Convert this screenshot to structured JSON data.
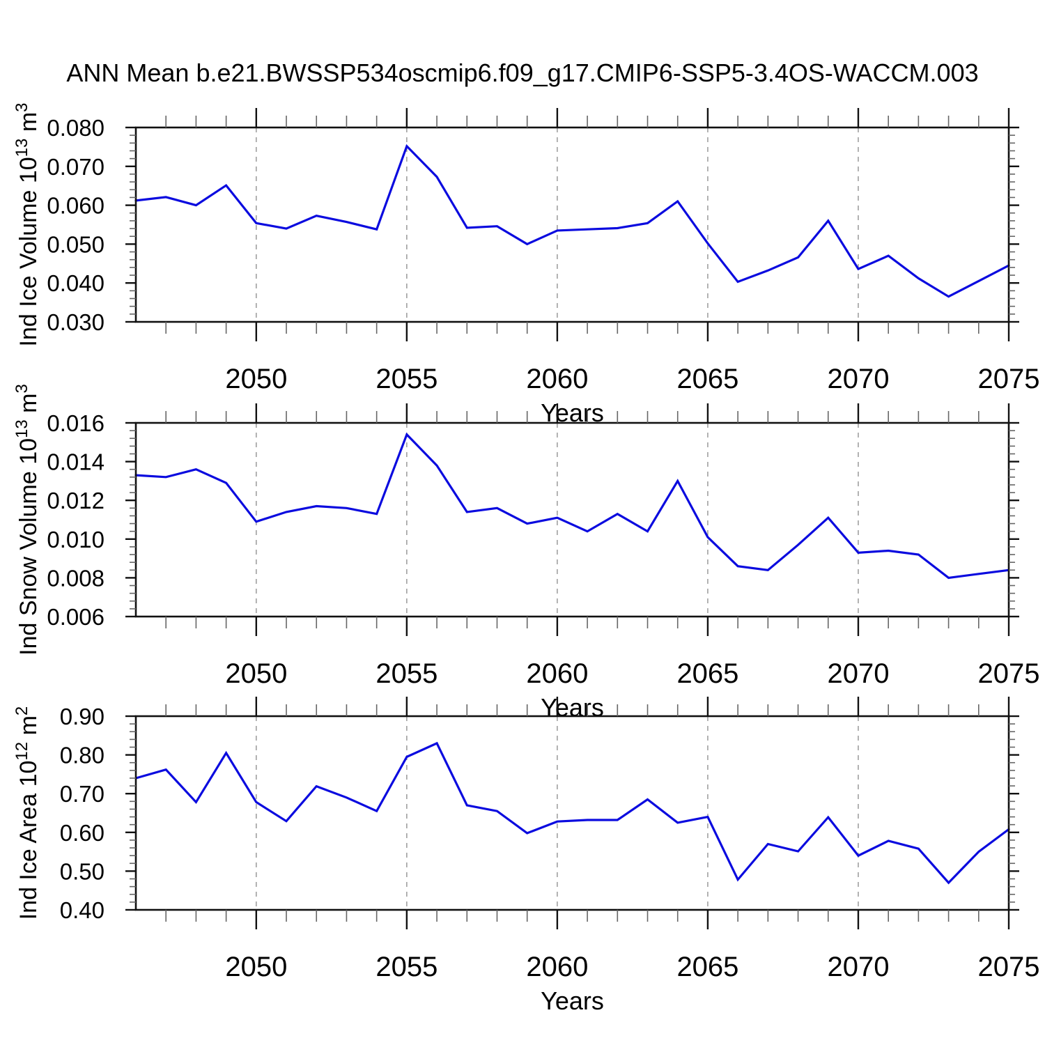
{
  "title": "ANN Mean b.e21.BWSSP534oscmip6.f09_g17.CMIP6-SSP5-3.4OS-WACCM.003",
  "colors": {
    "line": "#0b0bdf",
    "axis": "#111111",
    "minor_tick": "#666666",
    "gridline": "#999999",
    "text": "#000000",
    "background": "#ffffff"
  },
  "chart_data": [
    {
      "type": "line",
      "series_name": "Ind Ice Volume",
      "ylabel": "Ind Ice Volume 10^13 m^3",
      "ylabel_runs": [
        {
          "text": "Ind Ice Volume 10",
          "sup": false
        },
        {
          "text": "13",
          "sup": true
        },
        {
          "text": " m",
          "sup": false
        },
        {
          "text": "3",
          "sup": true
        }
      ],
      "xlabel": "Years",
      "x": [
        2046,
        2047,
        2048,
        2049,
        2050,
        2051,
        2052,
        2053,
        2054,
        2055,
        2056,
        2057,
        2058,
        2059,
        2060,
        2061,
        2062,
        2063,
        2064,
        2065,
        2066,
        2067,
        2068,
        2069,
        2070,
        2071,
        2072,
        2073,
        2074,
        2075
      ],
      "values": [
        0.0612,
        0.0621,
        0.06,
        0.0651,
        0.0554,
        0.054,
        0.0573,
        0.0557,
        0.0538,
        0.0752,
        0.0673,
        0.0542,
        0.0546,
        0.05,
        0.0535,
        0.0538,
        0.0541,
        0.0554,
        0.061,
        0.0502,
        0.0403,
        0.0432,
        0.0466,
        0.056,
        0.0436,
        0.047,
        0.0412,
        0.0365,
        0.0405,
        0.0445
      ],
      "ylim": [
        0.03,
        0.08
      ],
      "ytick_values": [
        0.03,
        0.04,
        0.05,
        0.06,
        0.07,
        0.08
      ],
      "ytick_labels": [
        "0.030",
        "0.040",
        "0.050",
        "0.060",
        "0.070",
        "0.080"
      ],
      "ytick_minor_step": 0.002,
      "xlim": [
        2046,
        2075
      ],
      "xtick_values": [
        2050,
        2055,
        2060,
        2065,
        2070,
        2075
      ],
      "xtick_labels": [
        "2050",
        "2055",
        "2060",
        "2065",
        "2070",
        "2075"
      ],
      "xtick_minor_step": 1,
      "gridline_x": [
        2050,
        2055,
        2060,
        2065,
        2070
      ],
      "grid": true,
      "legend": "none"
    },
    {
      "type": "line",
      "series_name": "Ind Snow Volume",
      "ylabel": "Ind Snow Volume 10^13 m^3",
      "ylabel_runs": [
        {
          "text": "Ind Snow Volume 10",
          "sup": false
        },
        {
          "text": "13",
          "sup": true
        },
        {
          "text": " m",
          "sup": false
        },
        {
          "text": "3",
          "sup": true
        }
      ],
      "xlabel": "Years",
      "x": [
        2046,
        2047,
        2048,
        2049,
        2050,
        2051,
        2052,
        2053,
        2054,
        2055,
        2056,
        2057,
        2058,
        2059,
        2060,
        2061,
        2062,
        2063,
        2064,
        2065,
        2066,
        2067,
        2068,
        2069,
        2070,
        2071,
        2072,
        2073,
        2074,
        2075
      ],
      "values": [
        0.0133,
        0.0132,
        0.0136,
        0.0129,
        0.0109,
        0.0114,
        0.0117,
        0.0116,
        0.0113,
        0.0154,
        0.0138,
        0.0114,
        0.0116,
        0.0108,
        0.0111,
        0.0104,
        0.0113,
        0.0104,
        0.013,
        0.0101,
        0.0086,
        0.0084,
        0.0097,
        0.0111,
        0.0093,
        0.0094,
        0.0092,
        0.008,
        0.0082,
        0.0084
      ],
      "ylim": [
        0.006,
        0.016
      ],
      "ytick_values": [
        0.006,
        0.008,
        0.01,
        0.012,
        0.014,
        0.016
      ],
      "ytick_labels": [
        "0.006",
        "0.008",
        "0.010",
        "0.012",
        "0.014",
        "0.016"
      ],
      "ytick_minor_step": 0.0004,
      "xlim": [
        2046,
        2075
      ],
      "xtick_values": [
        2050,
        2055,
        2060,
        2065,
        2070,
        2075
      ],
      "xtick_labels": [
        "2050",
        "2055",
        "2060",
        "2065",
        "2070",
        "2075"
      ],
      "xtick_minor_step": 1,
      "gridline_x": [
        2050,
        2055,
        2060,
        2065,
        2070
      ],
      "grid": true,
      "legend": "none"
    },
    {
      "type": "line",
      "series_name": "Ind Ice Area",
      "ylabel": "Ind Ice Area 10^12 m^2",
      "ylabel_runs": [
        {
          "text": "Ind Ice Area 10",
          "sup": false
        },
        {
          "text": "12",
          "sup": true
        },
        {
          "text": " m",
          "sup": false
        },
        {
          "text": "2",
          "sup": true
        }
      ],
      "xlabel": "Years",
      "x": [
        2046,
        2047,
        2048,
        2049,
        2050,
        2051,
        2052,
        2053,
        2054,
        2055,
        2056,
        2057,
        2058,
        2059,
        2060,
        2061,
        2062,
        2063,
        2064,
        2065,
        2066,
        2067,
        2068,
        2069,
        2070,
        2071,
        2072,
        2073,
        2074,
        2075
      ],
      "values": [
        0.74,
        0.762,
        0.678,
        0.805,
        0.678,
        0.629,
        0.719,
        0.69,
        0.655,
        0.795,
        0.83,
        0.67,
        0.655,
        0.598,
        0.628,
        0.632,
        0.632,
        0.685,
        0.625,
        0.64,
        0.478,
        0.57,
        0.551,
        0.639,
        0.54,
        0.578,
        0.558,
        0.47,
        0.55,
        0.608
      ],
      "ylim": [
        0.4,
        0.9
      ],
      "ytick_values": [
        0.4,
        0.5,
        0.6,
        0.7,
        0.8,
        0.9
      ],
      "ytick_labels": [
        "0.40",
        "0.50",
        "0.60",
        "0.70",
        "0.80",
        "0.90"
      ],
      "ytick_minor_step": 0.02,
      "xlim": [
        2046,
        2075
      ],
      "xtick_values": [
        2050,
        2055,
        2060,
        2065,
        2070,
        2075
      ],
      "xtick_labels": [
        "2050",
        "2055",
        "2060",
        "2065",
        "2070",
        "2075"
      ],
      "xtick_minor_step": 1,
      "gridline_x": [
        2050,
        2055,
        2060,
        2065,
        2070
      ],
      "grid": true,
      "legend": "none"
    }
  ]
}
